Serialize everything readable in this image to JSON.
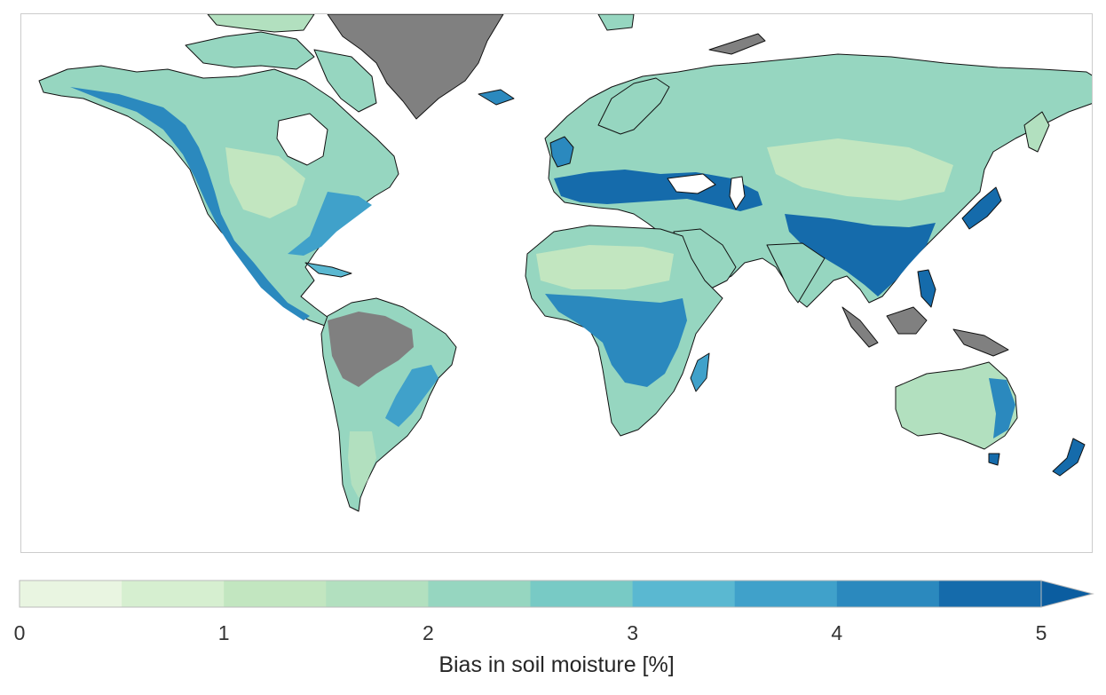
{
  "colorbar": {
    "label": "Bias in soil moisture [%]",
    "ticks": [
      "0",
      "1",
      "2",
      "3",
      "4",
      "5"
    ],
    "range": [
      0,
      5
    ],
    "step": 0.5,
    "extend": "max",
    "colors": [
      "#e9f5e1",
      "#d6efd0",
      "#c2e6c0",
      "#b2e0bf",
      "#96d6c0",
      "#78cac5",
      "#5ab8d1",
      "#40a1ca",
      "#2b89be",
      "#156bab"
    ],
    "over_color": "#0b5da0"
  },
  "map": {
    "projection": "plate-carree",
    "land_nodata_color": "#808080",
    "ocean_color": "#ffffff"
  }
}
